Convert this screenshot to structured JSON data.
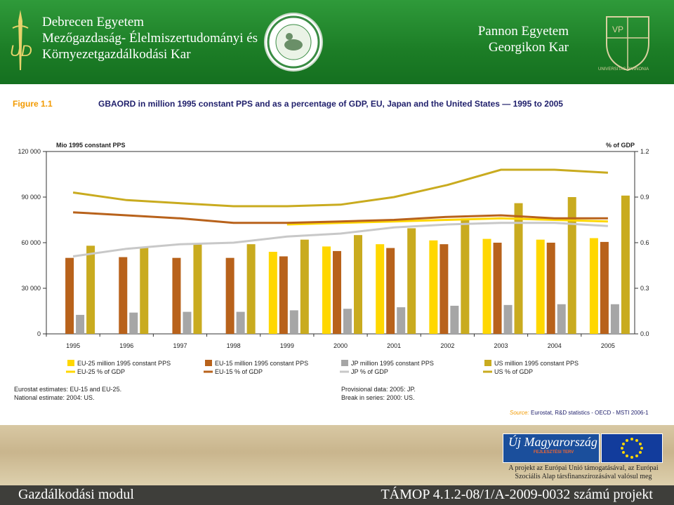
{
  "header": {
    "left_lines": [
      "Debrecen Egyetem",
      "Mezőgazdaság- Élelmiszertudományi és",
      "Környezetgazdálkodási Kar"
    ],
    "right_lines": [
      "Pannon Egyetem",
      "Georgikon Kar"
    ]
  },
  "figure": {
    "label": "Figure 1.1",
    "title": "GBAORD in million 1995 constant PPS and as a percentage of GDP, EU, Japan and the United States — 1995 to 2005",
    "notes_left": [
      "Eurostat estimates: EU-15 and EU-25.",
      "National estimate: 2004: US."
    ],
    "notes_right": [
      "Provisional data: 2005: JP.",
      "Break in series: 2000: US."
    ],
    "source_label": "Source:",
    "source_text": "Eurostat, R&D statistics - OECD - MSTI 2006-1"
  },
  "chart_data": {
    "type": "bar",
    "left_axis_label": "Mio 1995 constant PPS",
    "right_axis_label": "% of GDP",
    "categories": [
      "1995",
      "1996",
      "1997",
      "1998",
      "1999",
      "2000",
      "2001",
      "2002",
      "2003",
      "2004",
      "2005"
    ],
    "ylim": [
      0,
      120000
    ],
    "y_ticks": [
      "0",
      "30 000",
      "60 000",
      "90 000",
      "120 000"
    ],
    "y2lim": [
      0,
      1.2
    ],
    "y2_ticks": [
      "0.0",
      "0.3",
      "0.6",
      "0.9",
      "1.2"
    ],
    "bar_series": [
      {
        "name": "EU-25 million 1995 constant PPS",
        "color": "#ffd700",
        "values": [
          null,
          null,
          null,
          null,
          54000,
          57500,
          59000,
          61500,
          62500,
          62000,
          63000
        ]
      },
      {
        "name": "EU-15 million 1995 constant PPS",
        "color": "#b8621b",
        "values": [
          50000,
          50500,
          50000,
          50000,
          51000,
          54500,
          56500,
          59000,
          60000,
          60000,
          60500
        ]
      },
      {
        "name": "JP million 1995 constant PPS",
        "color": "#a6a6a6",
        "values": [
          12500,
          14000,
          14500,
          14500,
          15500,
          16500,
          17500,
          18500,
          19000,
          19500,
          19500
        ]
      },
      {
        "name": "US million 1995 constant PPS",
        "color": "#c9ab1f",
        "values": [
          58000,
          57000,
          59000,
          59000,
          62000,
          65000,
          69500,
          76000,
          86000,
          90000,
          91000
        ]
      }
    ],
    "line_series": [
      {
        "name": "EU-25 % of GDP",
        "color": "#ffd700",
        "values": [
          null,
          null,
          null,
          null,
          0.72,
          0.73,
          0.74,
          0.75,
          0.76,
          0.75,
          0.74
        ]
      },
      {
        "name": "EU-15 % of GDP",
        "color": "#b8621b",
        "values": [
          0.8,
          0.78,
          0.76,
          0.73,
          0.73,
          0.74,
          0.75,
          0.77,
          0.78,
          0.76,
          0.76
        ]
      },
      {
        "name": "JP % of GDP",
        "color": "#c8c8c8",
        "values": [
          0.51,
          0.56,
          0.59,
          0.6,
          0.64,
          0.66,
          0.7,
          0.72,
          0.73,
          0.73,
          0.71
        ]
      },
      {
        "name": "US % of GDP",
        "color": "#c9ab1f",
        "values": [
          0.93,
          0.88,
          0.86,
          0.84,
          0.84,
          0.85,
          0.9,
          0.98,
          1.08,
          1.08,
          1.06
        ]
      }
    ],
    "legend_position": "bottom",
    "grid": false
  },
  "logos": {
    "uj_magyarorszag": "Új Magyarország",
    "uj_sub": "FEJLESZTÉSI TERV",
    "support_note": [
      "A projekt az Európai Unió támogatásával, az Európai",
      "Szociális Alap társfinanszírozásával valósul meg"
    ],
    "left_emblem_letters": "UD",
    "crest_motto": "UNIVERSITAS PANNONIA"
  },
  "footer": {
    "left": "Gazdálkodási modul",
    "right": "TÁMOP 4.1.2-08/1/A-2009-0032 számú projekt"
  }
}
